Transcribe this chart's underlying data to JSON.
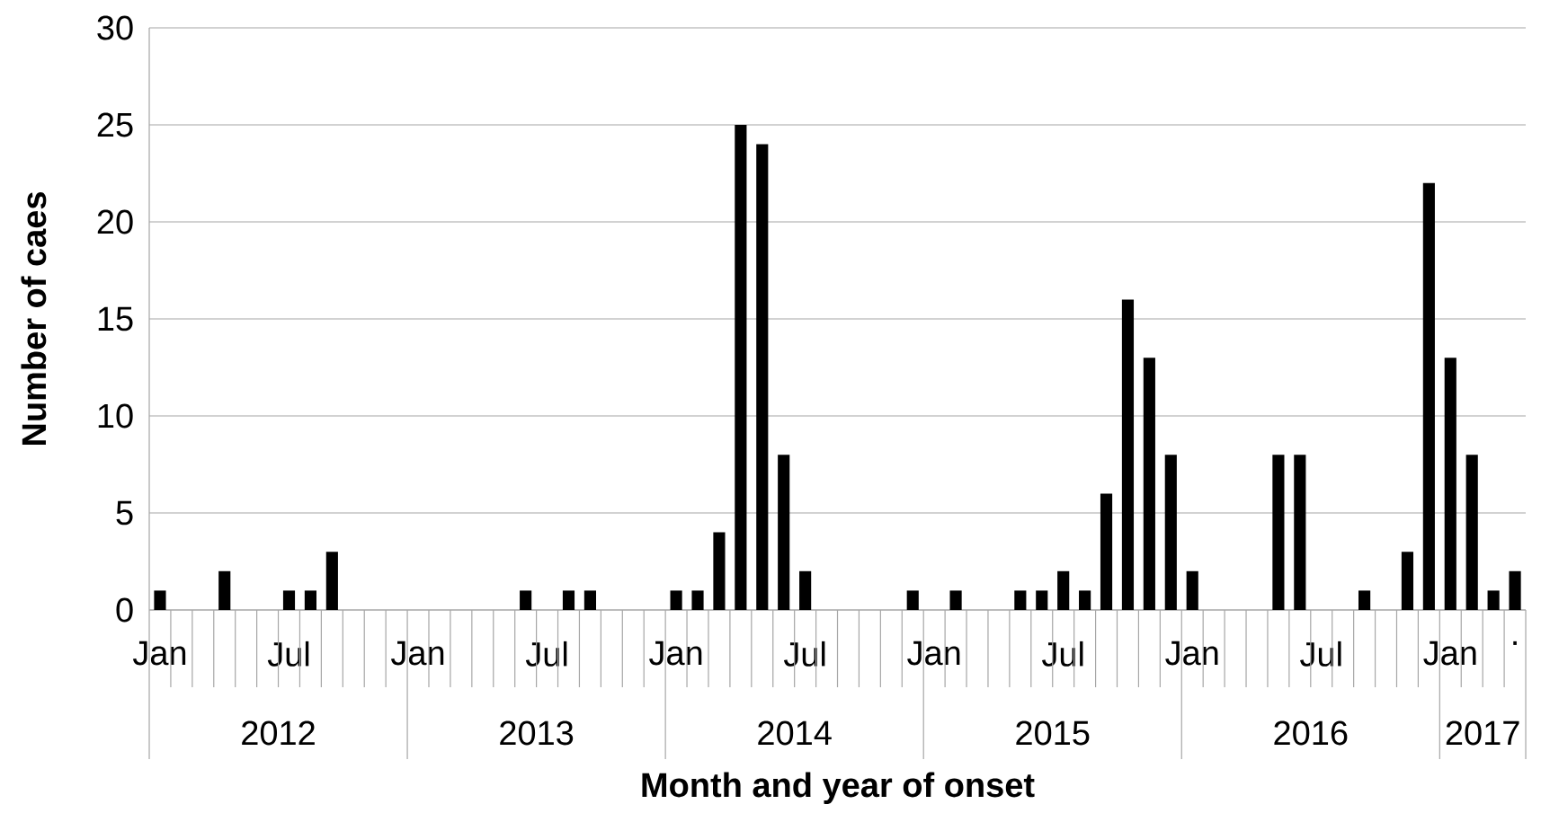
{
  "chart_data": {
    "type": "bar",
    "xlabel": "Month and year of onset",
    "ylabel": "Number of caes",
    "categories": [
      "Jan",
      null,
      null,
      null,
      null,
      null,
      "Jul",
      null,
      null,
      null,
      null,
      null,
      "Jan",
      null,
      null,
      null,
      null,
      null,
      "Jul",
      null,
      null,
      null,
      null,
      null,
      "Jan",
      null,
      null,
      null,
      null,
      null,
      "Jul",
      null,
      null,
      null,
      null,
      null,
      "Jan",
      null,
      null,
      null,
      null,
      null,
      "Jul",
      null,
      null,
      null,
      null,
      null,
      "Jan",
      null,
      null,
      null,
      null,
      null,
      "Jul",
      null,
      null,
      null,
      null,
      null,
      "Jan",
      null,
      null,
      "."
    ],
    "values": [
      1,
      0,
      0,
      2,
      0,
      0,
      1,
      1,
      3,
      0,
      0,
      0,
      0,
      0,
      0,
      0,
      0,
      1,
      0,
      1,
      1,
      0,
      0,
      0,
      1,
      1,
      4,
      25,
      24,
      8,
      2,
      0,
      0,
      0,
      0,
      1,
      0,
      1,
      0,
      0,
      1,
      1,
      2,
      1,
      6,
      16,
      13,
      8,
      2,
      0,
      0,
      0,
      8,
      8,
      0,
      0,
      1,
      0,
      3,
      22,
      13,
      8,
      1,
      2
    ],
    "color": "#000000",
    "ylim": [
      0,
      30
    ],
    "yticks": [
      0,
      5,
      10,
      15,
      20,
      25,
      30
    ],
    "grid": "y",
    "annotations": [
      "2012",
      "2013",
      "2014",
      "2015",
      "2016",
      "2017"
    ]
  }
}
